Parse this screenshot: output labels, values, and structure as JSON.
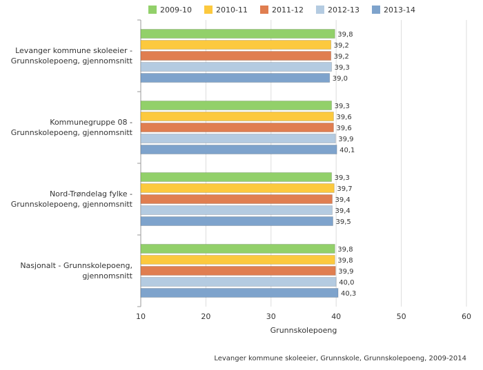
{
  "chart_data": {
    "type": "bar",
    "orientation": "horizontal",
    "categories": [
      "Levanger kommune skoleeier - Grunnskolepoeng, gjennomsnitt",
      "Kommunegruppe 08 - Grunnskolepoeng, gjennomsnitt",
      "Nord-Trøndelag fylke - Grunnskolepoeng, gjennomsnitt",
      "Nasjonalt - Grunnskolepoeng, gjennomsnitt"
    ],
    "series": [
      {
        "name": "2009-10",
        "color": "#92d06a",
        "values": [
          39.8,
          39.3,
          39.3,
          39.8
        ],
        "value_labels": [
          "39,8",
          "39,3",
          "39,3",
          "39,8"
        ]
      },
      {
        "name": "2010-11",
        "color": "#fcc93e",
        "values": [
          39.2,
          39.6,
          39.7,
          39.8
        ],
        "value_labels": [
          "39,2",
          "39,6",
          "39,7",
          "39,8"
        ]
      },
      {
        "name": "2011-12",
        "color": "#e07e50",
        "values": [
          39.2,
          39.6,
          39.4,
          39.9
        ],
        "value_labels": [
          "39,2",
          "39,6",
          "39,4",
          "39,9"
        ]
      },
      {
        "name": "2012-13",
        "color": "#b4cbe1",
        "values": [
          39.3,
          39.9,
          39.4,
          40.0
        ],
        "value_labels": [
          "39,3",
          "39,9",
          "39,4",
          "40,0"
        ]
      },
      {
        "name": "2013-14",
        "color": "#7ea3cc",
        "values": [
          39.0,
          40.1,
          39.5,
          40.3
        ],
        "value_labels": [
          "39,0",
          "40,1",
          "39,5",
          "40,3"
        ]
      }
    ],
    "xlim": [
      10,
      60
    ],
    "xticks": [
      10,
      20,
      30,
      40,
      50,
      60
    ],
    "grid": true,
    "x_label": "Grunnskolepoeng",
    "legend": "top",
    "source": "Levanger kommune skoleeier, Grunnskole, Grunnskolepoeng, 2009-2014"
  }
}
